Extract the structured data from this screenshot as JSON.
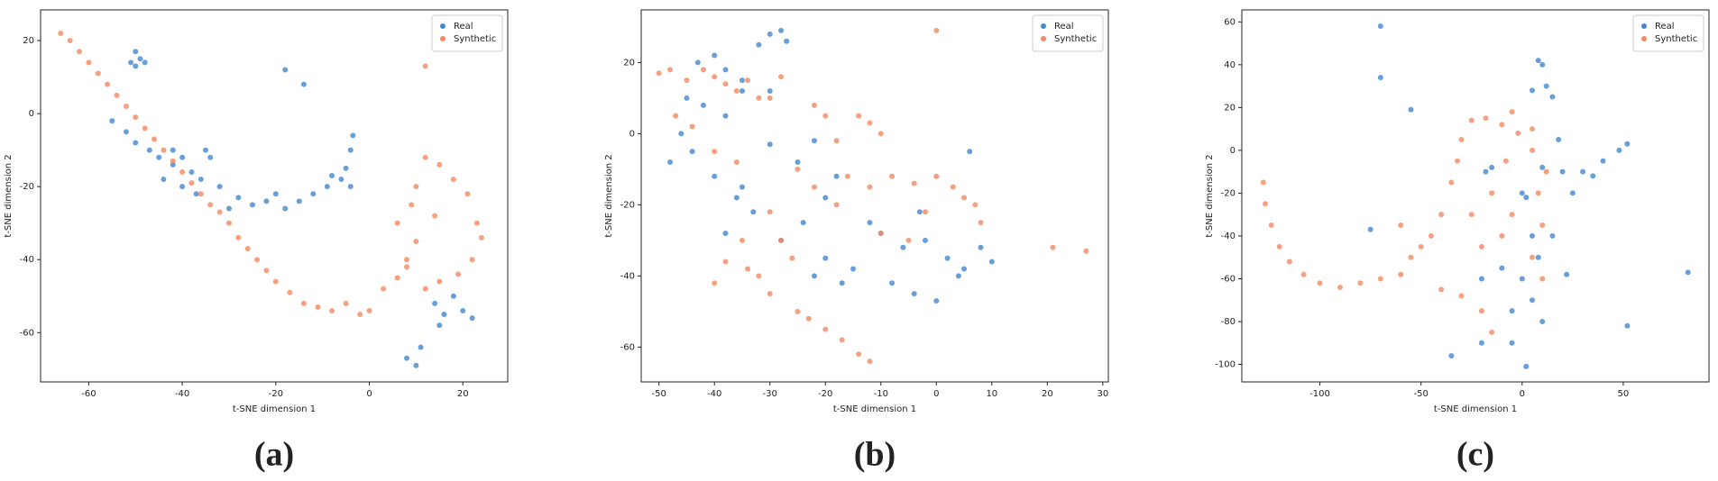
{
  "chart_data": [
    {
      "type": "scatter",
      "caption": "(a)",
      "xlabel": "t-SNE dimension 1",
      "ylabel": "t-SNE dimension 2",
      "xlim": [
        -70.3,
        29.6
      ],
      "ylim": [
        -73.5,
        28.4
      ],
      "xticks": [
        -60,
        -40,
        -20,
        0,
        20
      ],
      "yticks": [
        20,
        0,
        -20,
        -40,
        -60
      ],
      "legend": "upper right",
      "series": [
        {
          "name": "Real",
          "color": "#4287d0",
          "x": [
            -51,
            -50,
            -49,
            -50,
            -48,
            -55,
            -52,
            -50,
            -47,
            -45,
            -42,
            -40,
            -38,
            -36,
            -34,
            -40,
            -44,
            -37,
            -32,
            -28,
            -25,
            -22,
            -18,
            -15,
            -12,
            -9,
            -6,
            -5,
            -4,
            -3.5,
            -4,
            -8,
            -20,
            -30,
            14,
            16,
            18,
            20,
            22,
            15,
            -18,
            -14,
            8,
            11,
            10,
            -42,
            -35
          ],
          "values": [
            14,
            13,
            15,
            17,
            14,
            -2,
            -5,
            -8,
            -10,
            -12,
            -14,
            -12,
            -16,
            -18,
            -12,
            -20,
            -18,
            -22,
            -20,
            -23,
            -25,
            -24,
            -26,
            -24,
            -22,
            -20,
            -18,
            -15,
            -10,
            -6,
            -20,
            -17,
            -22,
            -26,
            -52,
            -55,
            -50,
            -54,
            -56,
            -58,
            12,
            8,
            -67,
            -64,
            -69,
            -10,
            -10
          ]
        },
        {
          "name": "Synthetic",
          "color": "#f28a62",
          "x": [
            -66,
            -64,
            -62,
            -60,
            -58,
            -56,
            -54,
            -52,
            -50,
            -48,
            -46,
            -44,
            -42,
            -40,
            -38,
            -36,
            -34,
            -32,
            -30,
            -28,
            -26,
            -24,
            -22,
            -20,
            -17,
            -14,
            -11,
            -8,
            -5,
            -2,
            0,
            3,
            6,
            8,
            10,
            10,
            12,
            15,
            18,
            21,
            23,
            24,
            22,
            19,
            15,
            12,
            8,
            6,
            9,
            14,
            12
          ],
          "values": [
            22,
            20,
            17,
            14,
            11,
            8,
            5,
            2,
            -1,
            -4,
            -7,
            -10,
            -13,
            -16,
            -19,
            -22,
            -25,
            -27,
            -30,
            -34,
            -37,
            -40,
            -43,
            -46,
            -49,
            -52,
            -53,
            -54,
            -52,
            -55,
            -54,
            -48,
            -45,
            -40,
            -35,
            -20,
            -12,
            -14,
            -18,
            -22,
            -30,
            -34,
            -40,
            -44,
            -46,
            -48,
            -42,
            -30,
            -25,
            -28,
            13
          ]
        }
      ]
    },
    {
      "type": "scatter",
      "caption": "(b)",
      "xlabel": "t-SNE dimension 1",
      "ylabel": "t-SNE dimension 2",
      "xlim": [
        -53.2,
        31
      ],
      "ylim": [
        -69.8,
        34.8
      ],
      "xticks": [
        -50,
        -40,
        -30,
        -20,
        -10,
        0,
        10,
        20,
        30
      ],
      "yticks": [
        20,
        0,
        -20,
        -40,
        -60
      ],
      "legend": "upper right",
      "series": [
        {
          "name": "Real",
          "color": "#4287d0",
          "x": [
            -43,
            -40,
            -38,
            -35,
            -32,
            -30,
            -28,
            -27,
            -45,
            -42,
            -38,
            -35,
            -30,
            -46,
            -44,
            -40,
            -35,
            -30,
            -25,
            -22,
            -20,
            -18,
            -24,
            -28,
            -33,
            -38,
            -20,
            -15,
            -10,
            -6,
            -2,
            2,
            5,
            8,
            10,
            -8,
            -4,
            0,
            4,
            -12,
            -3,
            6,
            -22,
            -17,
            -36,
            -48
          ],
          "values": [
            20,
            22,
            18,
            15,
            25,
            28,
            29,
            26,
            10,
            8,
            5,
            12,
            12,
            0,
            -5,
            -12,
            -15,
            -3,
            -8,
            -2,
            -18,
            -12,
            -25,
            -30,
            -22,
            -28,
            -35,
            -38,
            -28,
            -32,
            -30,
            -35,
            -38,
            -32,
            -36,
            -42,
            -45,
            -47,
            -40,
            -25,
            -22,
            -5,
            -40,
            -42,
            -18,
            -8
          ]
        },
        {
          "name": "Synthetic",
          "color": "#f28a62",
          "x": [
            -50,
            -48,
            -45,
            -42,
            -40,
            -38,
            -36,
            -34,
            -30,
            -28,
            -47,
            -44,
            -40,
            -36,
            -32,
            -25,
            -22,
            -20,
            -18,
            -14,
            -12,
            -10,
            -16,
            -12,
            -8,
            -4,
            0,
            3,
            5,
            7,
            8,
            -5,
            -10,
            -2,
            -30,
            -28,
            -26,
            -32,
            -34,
            -38,
            -40,
            -30,
            -25,
            -23,
            -20,
            -17,
            -14,
            -12,
            0,
            21,
            27,
            -22,
            -18,
            -35
          ],
          "values": [
            17,
            18,
            15,
            18,
            16,
            14,
            12,
            15,
            10,
            16,
            5,
            2,
            -5,
            -8,
            10,
            -10,
            8,
            5,
            -2,
            5,
            3,
            0,
            -12,
            -15,
            -12,
            -14,
            -12,
            -15,
            -18,
            -20,
            -25,
            -30,
            -28,
            -22,
            -22,
            -30,
            -35,
            -40,
            -38,
            -36,
            -42,
            -45,
            -50,
            -52,
            -55,
            -58,
            -62,
            -64,
            29,
            -32,
            -33,
            -15,
            -20,
            -30
          ]
        }
      ]
    },
    {
      "type": "scatter",
      "caption": "(c)",
      "xlabel": "t-SNE dimension 1",
      "ylabel": "t-SNE dimension 2",
      "xlim": [
        -138.6,
        92.4
      ],
      "ylim": [
        -108.2,
        65.6
      ],
      "xticks": [
        -100,
        -50,
        0,
        50
      ],
      "yticks": [
        60,
        40,
        20,
        0,
        -20,
        -40,
        -60,
        -80,
        -100
      ],
      "legend": "upper right",
      "series": [
        {
          "name": "Real",
          "color": "#4287d0",
          "x": [
            -70,
            -70,
            -55,
            -75,
            -35,
            -20,
            2,
            5,
            8,
            10,
            12,
            5,
            15,
            10,
            -15,
            -18,
            0,
            2,
            20,
            30,
            40,
            48,
            52,
            35,
            0,
            5,
            -10,
            10,
            -20,
            15,
            8,
            -5,
            22,
            52,
            82,
            -5,
            18,
            25
          ],
          "values": [
            58,
            34,
            19,
            -37,
            -96,
            -90,
            -101,
            -40,
            42,
            40,
            30,
            28,
            25,
            -8,
            -8,
            -10,
            -20,
            -22,
            -10,
            -10,
            -5,
            0,
            3,
            -12,
            -60,
            -70,
            -55,
            -80,
            -60,
            -40,
            -50,
            -75,
            -58,
            -82,
            -57,
            -90,
            5,
            -20
          ]
        },
        {
          "name": "Synthetic",
          "color": "#f28a62",
          "x": [
            -128,
            -127,
            -124,
            -120,
            -115,
            -108,
            -100,
            -90,
            -80,
            -70,
            -60,
            -50,
            -45,
            -40,
            -35,
            -32,
            -30,
            -25,
            -18,
            -10,
            -5,
            5,
            -8,
            -5,
            -10,
            8,
            10,
            5,
            10,
            -20,
            -25,
            -40,
            -30,
            -20,
            -15,
            12,
            5,
            -2,
            -15,
            -60,
            -55
          ],
          "values": [
            -15,
            -25,
            -35,
            -45,
            -52,
            -58,
            -62,
            -64,
            -62,
            -60,
            -58,
            -45,
            -40,
            -30,
            -15,
            -5,
            5,
            14,
            15,
            12,
            18,
            10,
            -5,
            -30,
            -40,
            -20,
            -35,
            -50,
            -60,
            -45,
            -30,
            -65,
            -68,
            -75,
            -85,
            -10,
            0,
            8,
            -20,
            -35,
            -50
          ]
        }
      ]
    }
  ]
}
